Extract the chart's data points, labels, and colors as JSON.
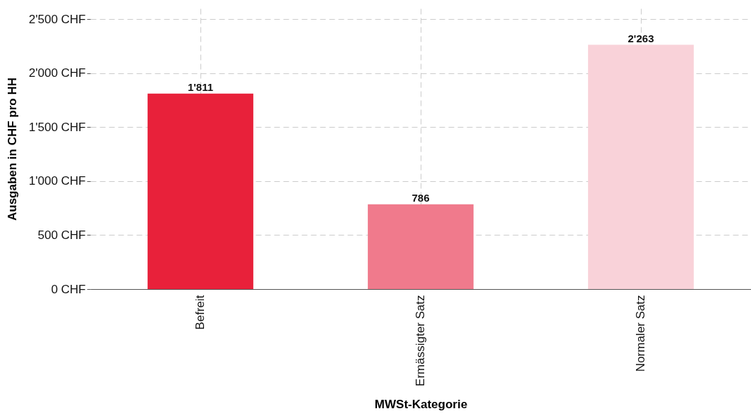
{
  "chart_data": {
    "type": "bar",
    "xlabel": "MWSt-Kategorie",
    "ylabel": "Ausgaben in CHF pro HH",
    "categories": [
      "Befreit",
      "Ermässigter Satz",
      "Normaler Satz"
    ],
    "values": [
      1811,
      786,
      2263
    ],
    "colors": [
      "#e8213a",
      "#f07a8c",
      "#f9d2d9"
    ],
    "value_labels": [
      "1'811",
      "786",
      "2'263"
    ],
    "ylim": [
      0,
      2600
    ],
    "yticks": [
      {
        "value": 0,
        "label": "0 CHF"
      },
      {
        "value": 500,
        "label": "500 CHF"
      },
      {
        "value": 1000,
        "label": "1'000 CHF"
      },
      {
        "value": 1500,
        "label": "1'500 CHF"
      },
      {
        "value": 2000,
        "label": "2'000 CHF"
      },
      {
        "value": 2500,
        "label": "2'500 CHF"
      }
    ],
    "grid": true,
    "legend": false
  }
}
